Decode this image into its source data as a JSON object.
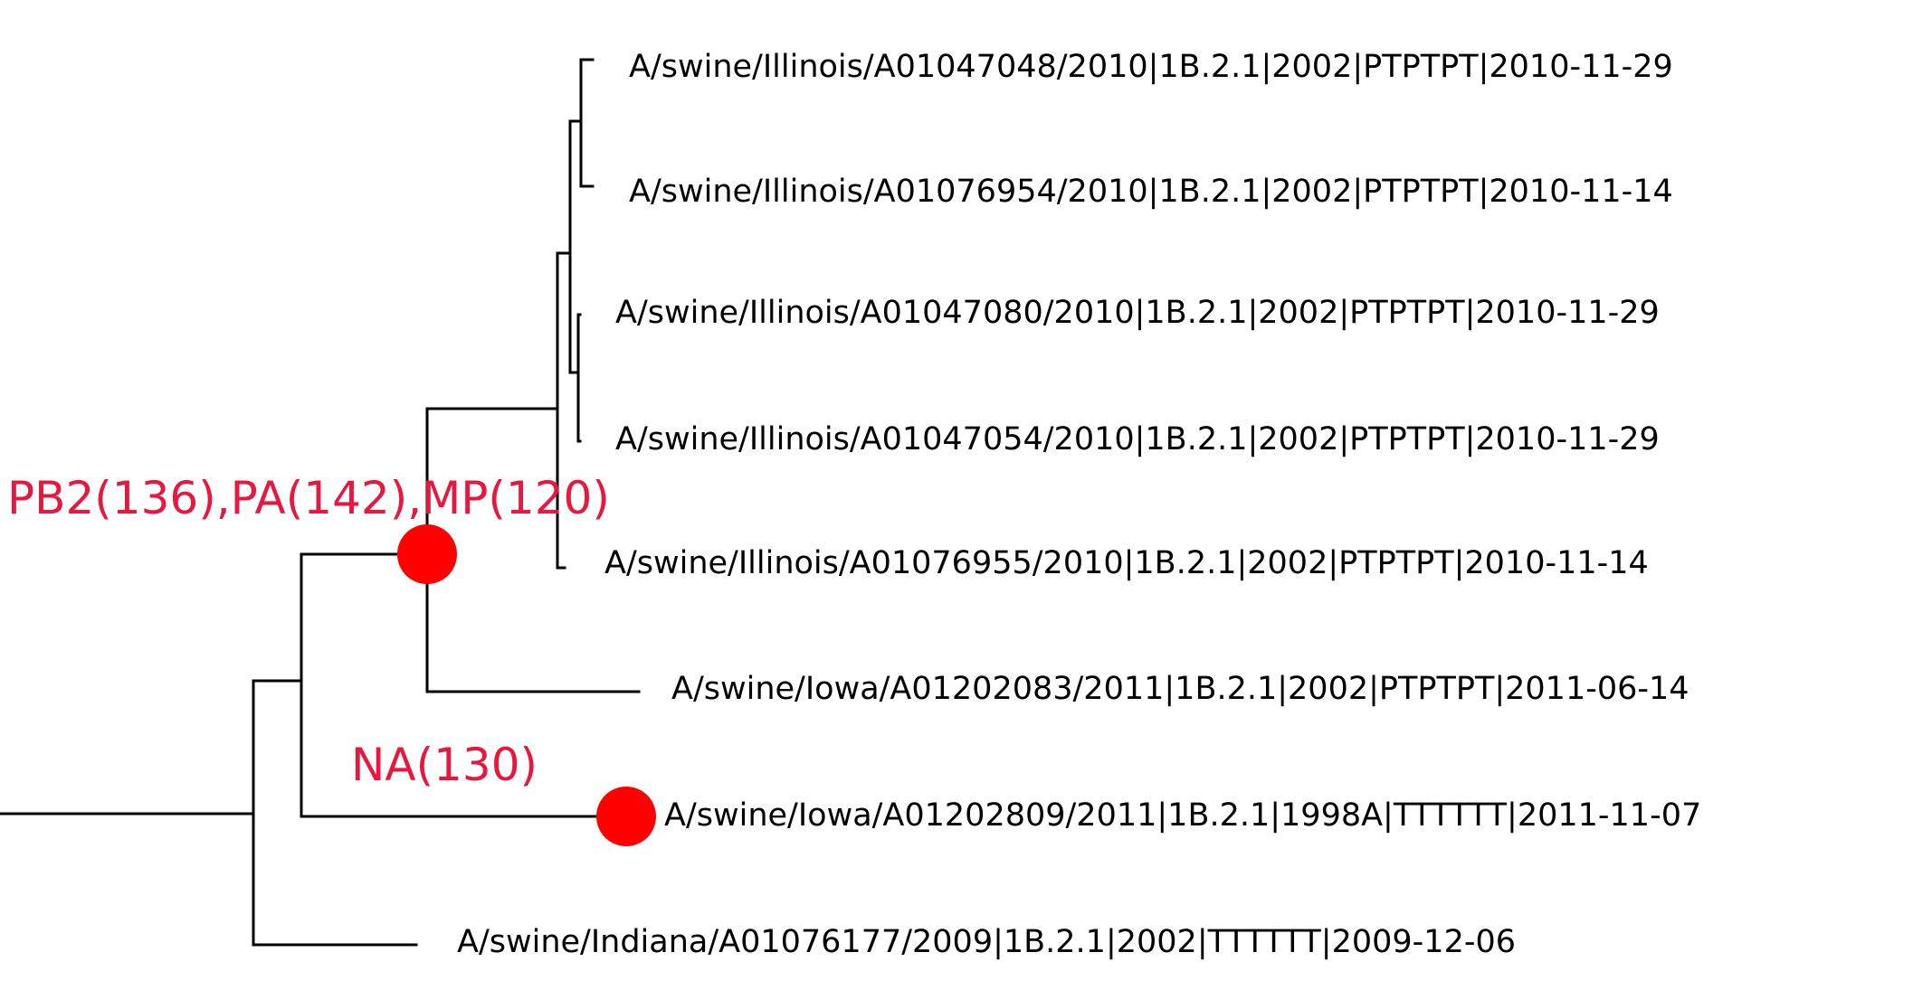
{
  "tree": {
    "tips": [
      "A/swine/Illinois/A01047048/2010|1B.2.1|2002|PTPTPT|2010-11-29",
      "A/swine/Illinois/A01076954/2010|1B.2.1|2002|PTPTPT|2010-11-14",
      "A/swine/Illinois/A01047080/2010|1B.2.1|2002|PTPTPT|2010-11-29",
      "A/swine/Illinois/A01047054/2010|1B.2.1|2002|PTPTPT|2010-11-29",
      "A/swine/Illinois/A01076955/2010|1B.2.1|2002|PTPTPT|2010-11-14",
      "A/swine/Iowa/A01202083/2011|1B.2.1|2002|PTPTPT|2011-06-14",
      "A/swine/Iowa/A01202809/2011|1B.2.1|1998A|TTTTTT|2011-11-07",
      "A/swine/Indiana/A01076177/2009|1B.2.1|2002|TTTTTT|2009-12-06"
    ],
    "events": [
      {
        "label": "PB2(136),PA(142),MP(120)",
        "color": "#e8173f",
        "marker_color": "#ff0000"
      },
      {
        "label": "NA(130)",
        "color": "#e8173f",
        "marker_color": "#ff0000"
      }
    ]
  }
}
